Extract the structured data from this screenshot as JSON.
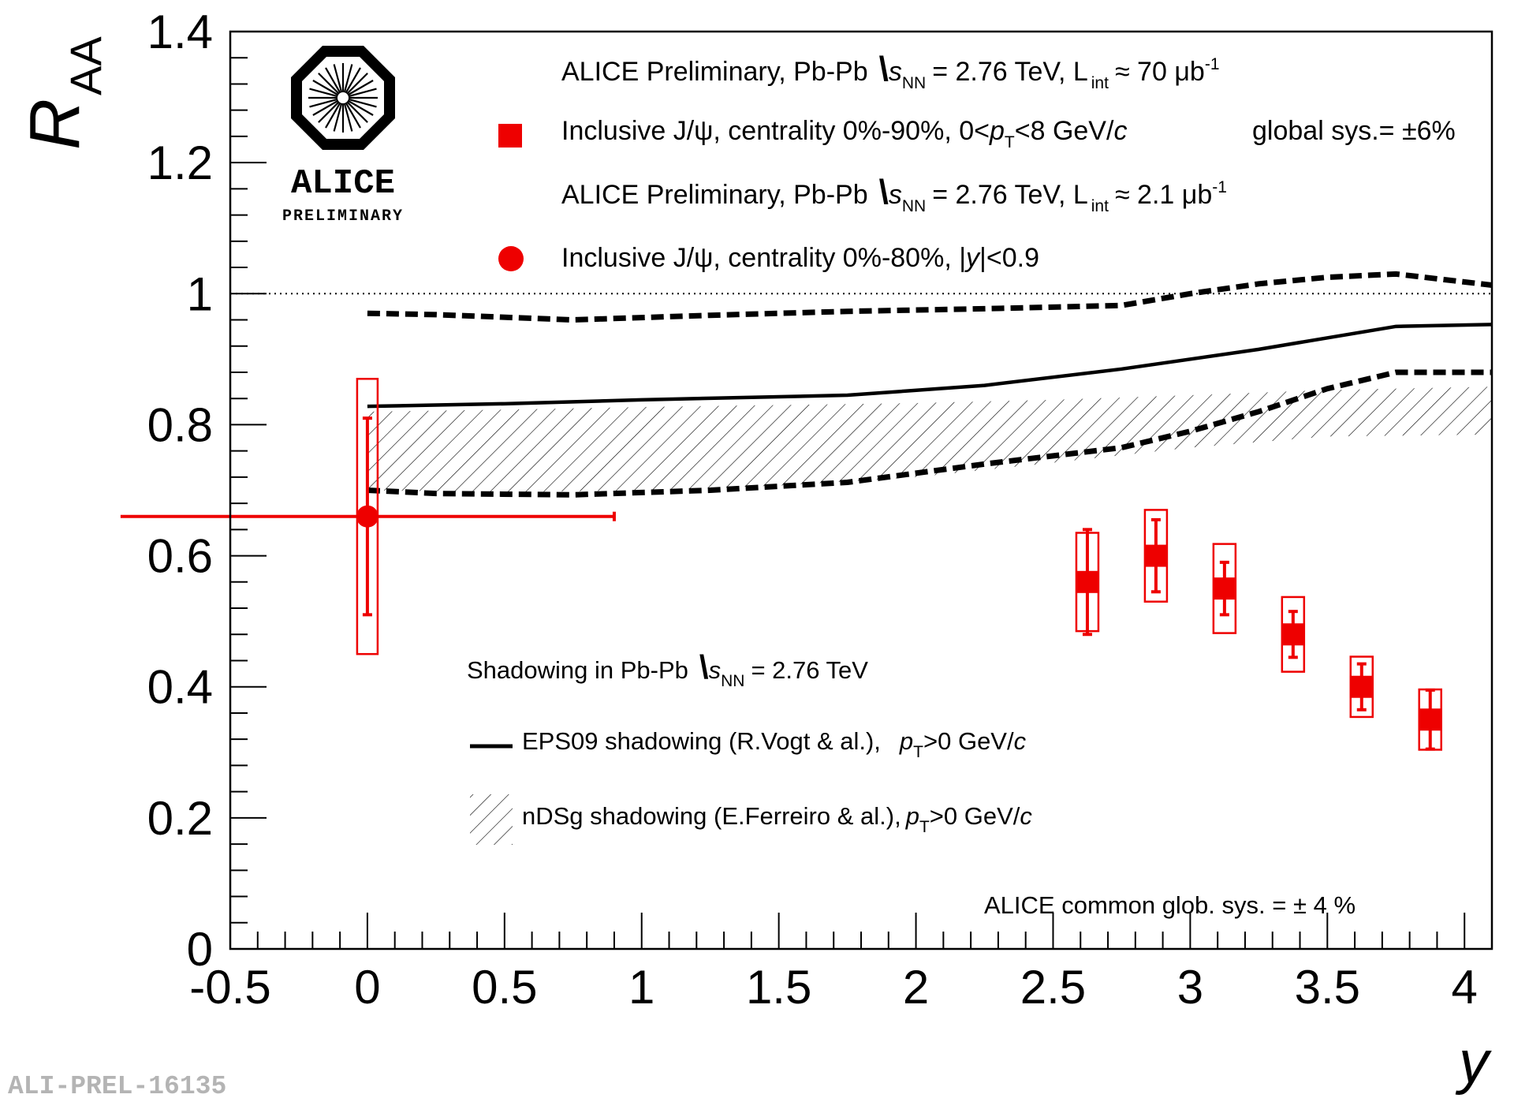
{
  "chart_data": {
    "type": "scatter",
    "title": "",
    "xlabel": "y",
    "ylabel_main": "R",
    "ylabel_sub": "AA",
    "xlim": [
      -0.5,
      4.1
    ],
    "ylim": [
      0,
      1.4
    ],
    "x_ticks": [
      "-0.5",
      "0",
      "0.5",
      "1",
      "1.5",
      "2",
      "2.5",
      "3",
      "3.5",
      "4"
    ],
    "y_ticks": [
      "0",
      "0.2",
      "0.4",
      "0.6",
      "0.8",
      "1",
      "1.2",
      "1.4"
    ],
    "reference_line": 1.0,
    "series": [
      {
        "name": "Inclusive J/ψ, centrality 0%-90%, 0<pT<8 GeV/c (forward)",
        "marker": "square",
        "color": "#ee0000",
        "points": [
          {
            "x": 2.625,
            "y": 0.56,
            "stat": 0.08,
            "sys": 0.075
          },
          {
            "x": 2.875,
            "y": 0.6,
            "stat": 0.055,
            "sys": 0.07
          },
          {
            "x": 3.125,
            "y": 0.55,
            "stat": 0.04,
            "sys": 0.068
          },
          {
            "x": 3.375,
            "y": 0.48,
            "stat": 0.035,
            "sys": 0.057
          },
          {
            "x": 3.625,
            "y": 0.4,
            "stat": 0.035,
            "sys": 0.046
          },
          {
            "x": 3.875,
            "y": 0.35,
            "stat": 0.045,
            "sys": 0.046
          }
        ]
      },
      {
        "name": "Inclusive J/ψ, centrality 0%-80%, |y|<0.9 (mid)",
        "marker": "circle",
        "color": "#ee0000",
        "points": [
          {
            "x": 0.0,
            "y": 0.66,
            "stat": 0.15,
            "sys": 0.21,
            "xerr": 0.9
          }
        ]
      },
      {
        "name": "EPS09 shadowing (R.Vogt & al.)",
        "style": "solid",
        "x": [
          0.0,
          0.5,
          1.0,
          1.75,
          2.25,
          2.75,
          3.25,
          3.75,
          4.1
        ],
        "y": [
          0.828,
          0.832,
          0.838,
          0.845,
          0.86,
          0.885,
          0.915,
          0.95,
          0.953
        ]
      },
      {
        "name": "EPS09 shadowing upper",
        "style": "dashed",
        "x": [
          0.0,
          0.25,
          0.75,
          1.25,
          1.75,
          2.25,
          2.75,
          3.0,
          3.25,
          3.5,
          3.75,
          4.1
        ],
        "y": [
          0.97,
          0.968,
          0.96,
          0.967,
          0.973,
          0.977,
          0.982,
          1.0,
          1.015,
          1.025,
          1.03,
          1.013
        ]
      },
      {
        "name": "EPS09 shadowing lower",
        "style": "dashed",
        "x": [
          0.0,
          0.25,
          0.75,
          1.25,
          1.75,
          2.25,
          2.75,
          3.0,
          3.25,
          3.5,
          3.75,
          4.1
        ],
        "y": [
          0.7,
          0.695,
          0.693,
          0.7,
          0.712,
          0.74,
          0.765,
          0.79,
          0.82,
          0.855,
          0.88,
          0.88
        ]
      },
      {
        "name": "nDSg shadowing (E.Ferreiro & al.)",
        "style": "hatched-band",
        "x": [
          0.0,
          0.5,
          1.0,
          1.5,
          2.0,
          2.5,
          3.0,
          3.5,
          4.1
        ],
        "y_high": [
          0.82,
          0.823,
          0.827,
          0.83,
          0.833,
          0.838,
          0.845,
          0.853,
          0.858
        ],
        "y_low": [
          0.7,
          0.697,
          0.7,
          0.707,
          0.72,
          0.742,
          0.765,
          0.782,
          0.785
        ]
      }
    ]
  },
  "legend": {
    "line1_a": "ALICE Preliminary, Pb-Pb",
    "line1_s": "s",
    "line1_sub": "NN",
    "line1_b": "= 2.76 TeV, L",
    "line1_int": "int",
    "line1_c": "≈ 70 μb",
    "line1_sup": "-1",
    "line2_a": "Inclusive J/ψ, centrality 0%-90%, 0<",
    "line2_p": "p",
    "line2_T": "T",
    "line2_b": "<8 GeV/",
    "line2_c": "c",
    "line2_glob": "global sys.= ±6%",
    "line3_a": "ALICE Preliminary, Pb-Pb",
    "line3_s": "s",
    "line3_sub": "NN",
    "line3_b": "= 2.76 TeV, L",
    "line3_int": "int",
    "line3_c": "≈ 2.1 μb",
    "line3_sup": "-1",
    "line4_a": "Inclusive J/ψ, centrality 0%-80%, |",
    "line4_y": "y",
    "line4_b": "|<0.9",
    "shadow_title_a": "Shadowing in Pb-Pb",
    "shadow_s": "s",
    "shadow_sub": "NN",
    "shadow_title_b": "= 2.76 TeV",
    "eps_a": "EPS09 shadowing (R.Vogt & al.),",
    "eps_p": "p",
    "eps_T": "T",
    "eps_b": ">0 GeV/",
    "eps_c": "c",
    "ndsg_a": "nDSg shadowing (E.Ferreiro & al.),",
    "ndsg_p": "p",
    "ndsg_T": "T",
    "ndsg_b": ">0 GeV/",
    "ndsg_c": "c",
    "common_sys": "ALICE common glob. sys. = ± 4 %"
  },
  "logo": {
    "name": "ALICE",
    "sub": "PRELIMINARY"
  },
  "footer_id": "ALI-PREL-16135",
  "colors": {
    "data": "#ee0000",
    "axis": "#000000",
    "footer": "#b4b4b4"
  }
}
